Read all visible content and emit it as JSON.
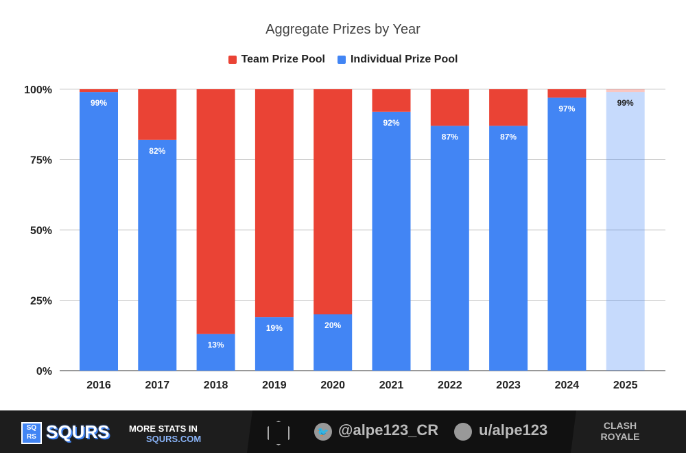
{
  "chart_data": {
    "type": "bar",
    "stacked": true,
    "percent": true,
    "title": "Aggregate Prizes by Year",
    "categories": [
      "2016",
      "2017",
      "2018",
      "2019",
      "2020",
      "2021",
      "2022",
      "2023",
      "2024",
      "2025"
    ],
    "series": [
      {
        "name": "Team Prize Pool",
        "color": "#ea4335",
        "values": [
          1,
          18,
          87,
          81,
          80,
          8,
          13,
          13,
          3,
          1
        ]
      },
      {
        "name": "Individual Prize Pool",
        "color": "#4285f4",
        "values": [
          99,
          82,
          13,
          19,
          20,
          92,
          87,
          87,
          97,
          99
        ]
      }
    ],
    "data_labels": [
      "99%",
      "82%",
      "13%",
      "19%",
      "20%",
      "92%",
      "87%",
      "87%",
      "97%",
      "99%"
    ],
    "highlight_faded": "2025",
    "yticks": [
      "0%",
      "25%",
      "50%",
      "75%",
      "100%"
    ],
    "ylim": [
      0,
      100
    ],
    "grid": true,
    "legend": "top"
  },
  "footer": {
    "brand": "SQURS",
    "logo_letters": "SQ RS",
    "promo_line1": "MORE STATS IN",
    "promo_line2": "SQURS.COM",
    "twitter": "@alpe123_CR",
    "reddit": "u/alpe123",
    "game_logo": "CLASH ROYALE"
  }
}
